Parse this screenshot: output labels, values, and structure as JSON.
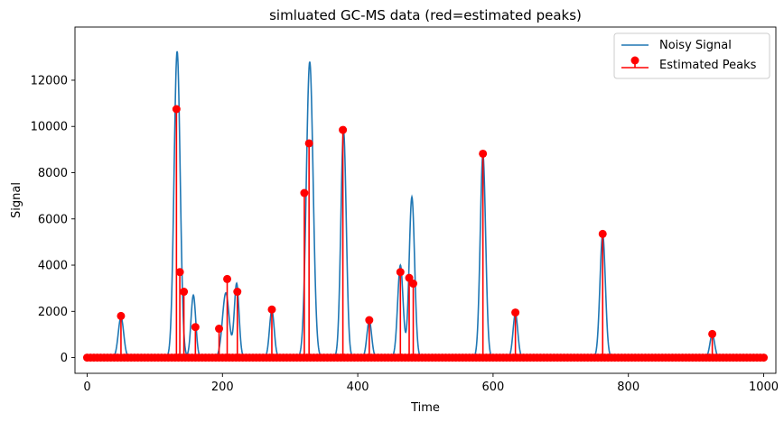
{
  "chart_data": {
    "type": "line",
    "title": "simluated GC-MS data (red=estimated peaks)",
    "xlabel": "Time",
    "ylabel": "Signal",
    "xlim": [
      -18,
      1018
    ],
    "ylim": [
      -680,
      14300
    ],
    "xticks": [
      0,
      200,
      400,
      600,
      800,
      1000
    ],
    "yticks": [
      0,
      2000,
      4000,
      6000,
      8000,
      10000,
      12000
    ],
    "legend": {
      "placement": "top-right",
      "entries": [
        "Noisy Signal",
        "Estimated Peaks"
      ]
    },
    "colors": {
      "signal": "#1f77b4",
      "peaks": "#ff0000"
    },
    "signal_peaks": [
      {
        "center": 50,
        "height": 1750,
        "sigma": 4
      },
      {
        "center": 133,
        "height": 13250,
        "sigma": 4.5
      },
      {
        "center": 157,
        "height": 2700,
        "sigma": 3.5
      },
      {
        "center": 205,
        "height": 2800,
        "sigma": 5
      },
      {
        "center": 221,
        "height": 3200,
        "sigma": 3.5
      },
      {
        "center": 273,
        "height": 2050,
        "sigma": 3.5
      },
      {
        "center": 329,
        "height": 12800,
        "sigma": 5
      },
      {
        "center": 379,
        "height": 9800,
        "sigma": 4
      },
      {
        "center": 417,
        "height": 1600,
        "sigma": 3.5
      },
      {
        "center": 463,
        "height": 4000,
        "sigma": 4
      },
      {
        "center": 480,
        "height": 6950,
        "sigma": 4
      },
      {
        "center": 585,
        "height": 8800,
        "sigma": 4
      },
      {
        "center": 633,
        "height": 1900,
        "sigma": 3.5
      },
      {
        "center": 762,
        "height": 5350,
        "sigma": 4
      },
      {
        "center": 924,
        "height": 1000,
        "sigma": 3.5
      }
    ],
    "estimated_peaks": {
      "x": [
        50,
        132,
        137,
        143,
        160,
        195,
        207,
        222,
        273,
        321,
        328,
        378,
        417,
        463,
        476,
        482,
        585,
        633,
        762,
        924
      ],
      "y": [
        1800,
        10750,
        3700,
        2850,
        1320,
        1250,
        3400,
        2850,
        2080,
        7120,
        9270,
        9850,
        1620,
        3700,
        3450,
        3200,
        8820,
        1950,
        5350,
        1020
      ]
    },
    "baseline_markers": {
      "start": 0,
      "end": 1000,
      "step": 5,
      "value": 0
    }
  }
}
